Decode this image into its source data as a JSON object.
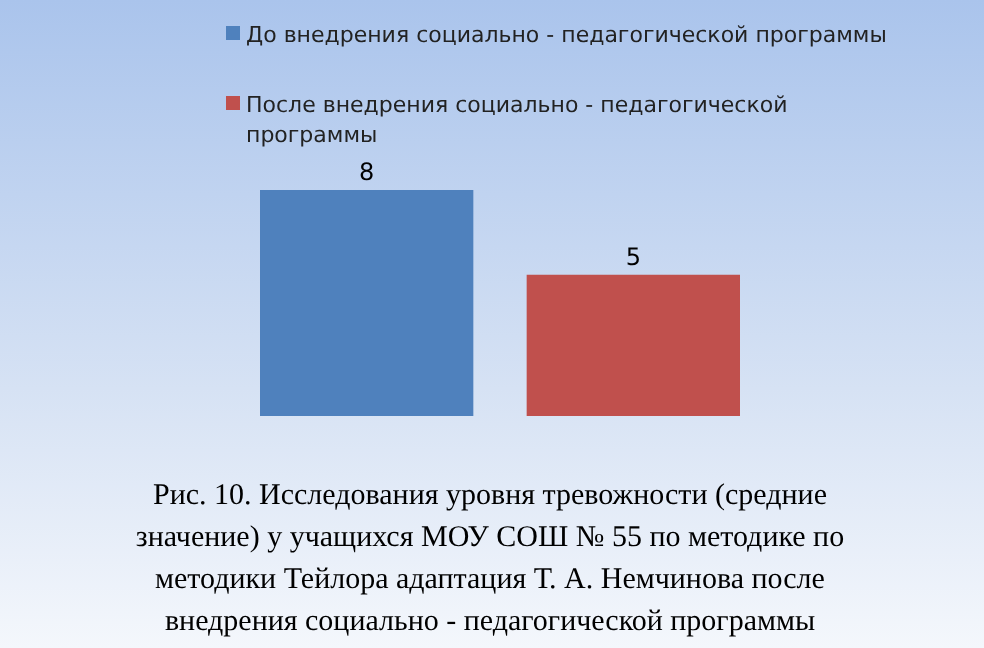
{
  "chart_data": {
    "type": "bar",
    "categories": [
      null
    ],
    "series": [
      {
        "name": "До внедрения социально - педагогической программы",
        "color": "#4f81bd",
        "values": [
          8
        ]
      },
      {
        "name": "После внедрения социально - педагогической программы",
        "color": "#c0504d",
        "values": [
          5
        ]
      }
    ],
    "data_labels": true,
    "legend": "top",
    "grid": false,
    "annotations": [
      "Рис. 10. Исследования уровня тревожности (средние значение) у учащихся МОУ СОШ № 55 по методике по методики Тейлора адаптация Т. А. Немчинова после внедрения социально - педагогической программы"
    ]
  }
}
